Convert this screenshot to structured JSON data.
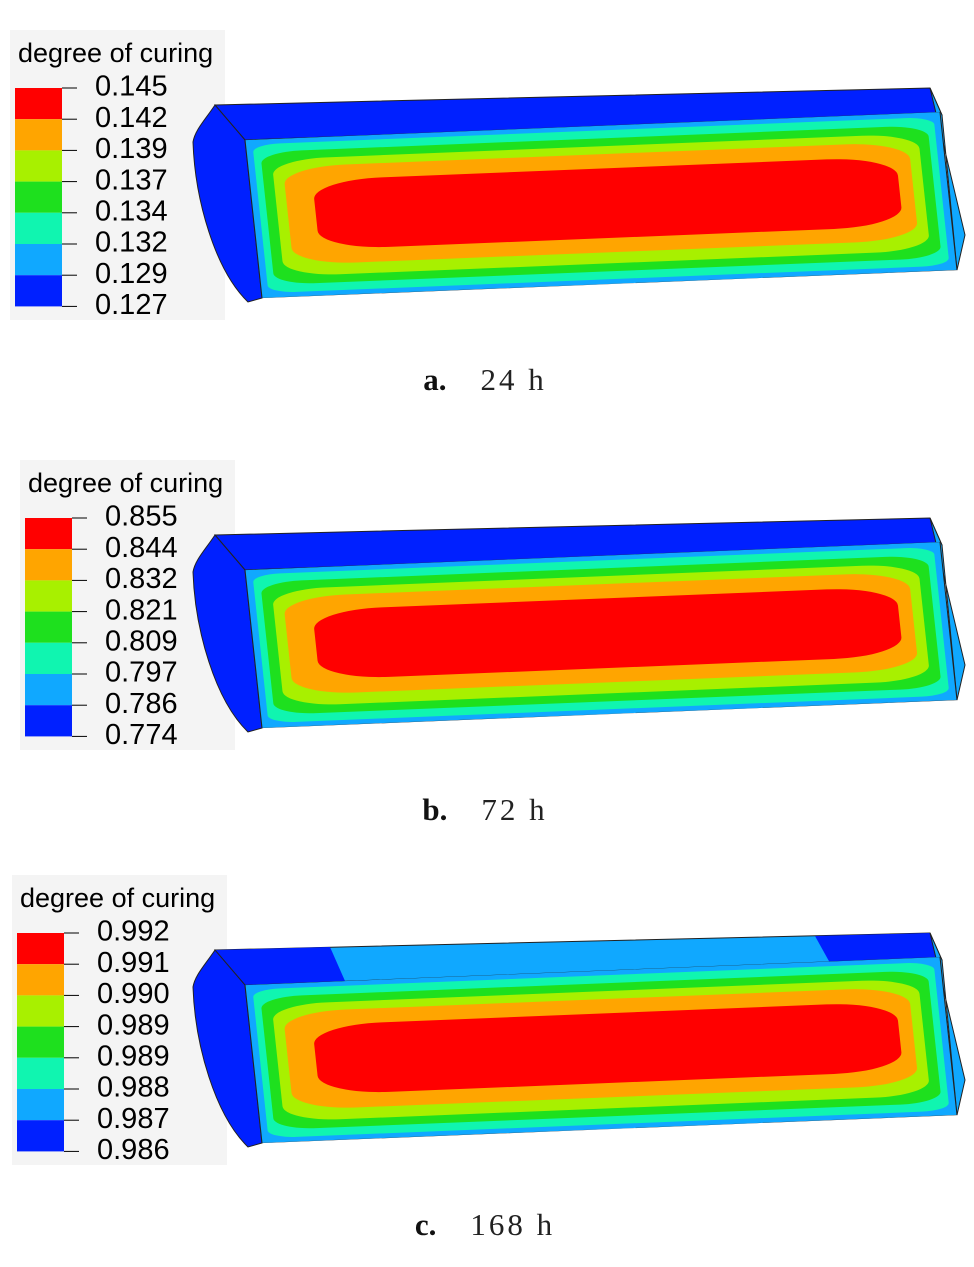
{
  "panels": [
    {
      "legend_title": "degree of curing",
      "legend_labels": [
        "0.145",
        "0.142",
        "0.139",
        "0.137",
        "0.134",
        "0.132",
        "0.129",
        "0.127"
      ],
      "caption_letter": "a.",
      "caption_time": "24 h"
    },
    {
      "legend_title": "degree of curing",
      "legend_labels": [
        "0.855",
        "0.844",
        "0.832",
        "0.821",
        "0.809",
        "0.797",
        "0.786",
        "0.774"
      ],
      "caption_letter": "b.",
      "caption_time": "72 h"
    },
    {
      "legend_title": "degree of curing",
      "legend_labels": [
        "0.992",
        "0.991",
        "0.990",
        "0.989",
        "0.989",
        "0.988",
        "0.987",
        "0.986"
      ],
      "caption_letter": "c.",
      "caption_time": "168 h"
    }
  ]
}
